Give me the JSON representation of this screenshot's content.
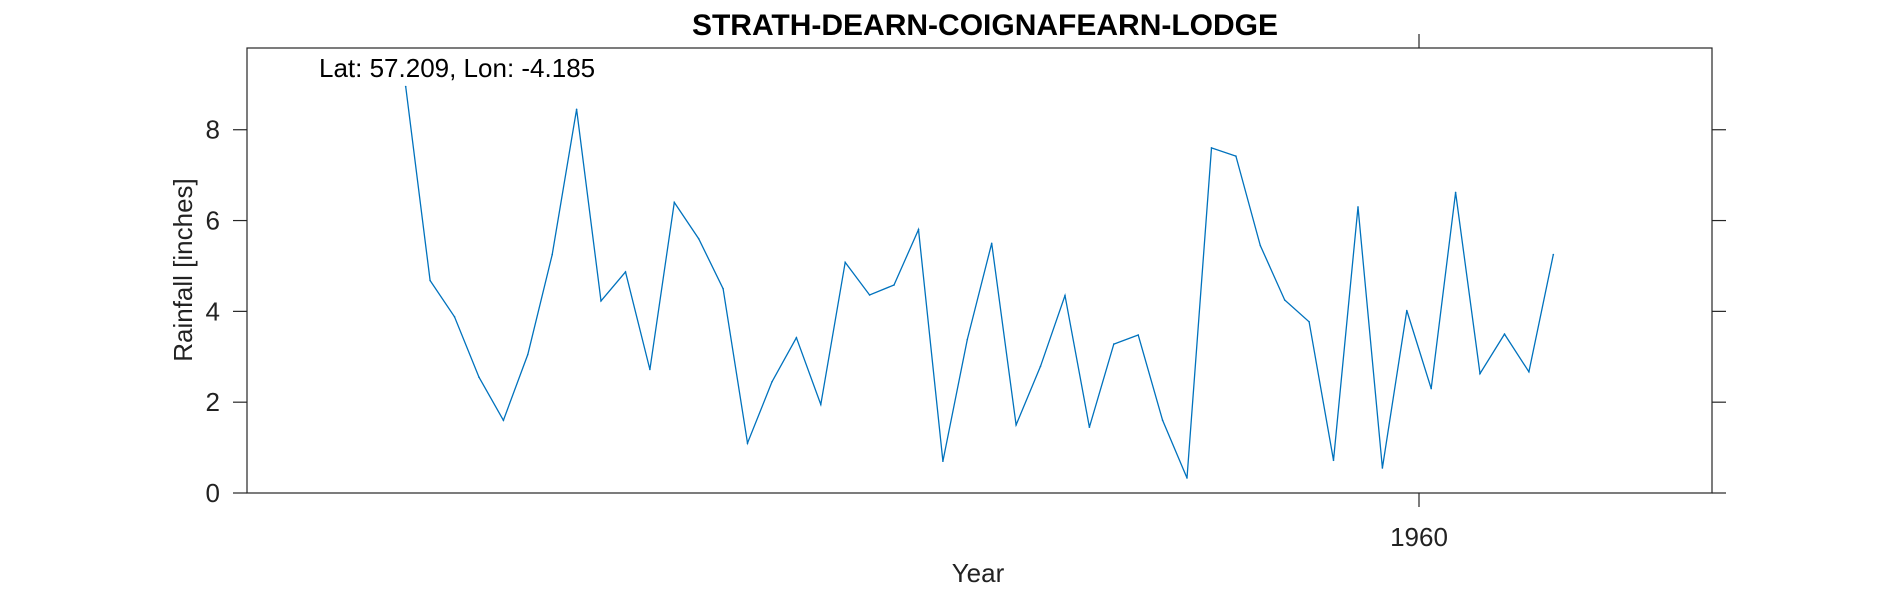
{
  "chart_data": {
    "type": "line",
    "title": "STRATH-DEARN-COIGNAFEARN-LODGE",
    "annotation": "Lat: 57.209, Lon: -4.185",
    "xlabel": "Year",
    "ylabel": "Rainfall [inches]",
    "xlim": [
      1912,
      1972
    ],
    "ylim": [
      0,
      9.8
    ],
    "x_ticks": [
      1960
    ],
    "x_tick_labels": [
      "1960"
    ],
    "y_ticks": [
      0,
      2,
      4,
      6,
      8
    ],
    "y_tick_labels": [
      "0",
      "2",
      "4",
      "6",
      "8"
    ],
    "grid": false,
    "legend": "none",
    "line_color": "#0072BD",
    "series": [
      {
        "x": [
          1918.5,
          1919.5,
          1920.5,
          1921.5,
          1922.5,
          1923.5,
          1924.5,
          1925.5,
          1926.5,
          1927.5,
          1928.5,
          1929.5,
          1930.5,
          1931.5,
          1932.5,
          1933.5,
          1934.5,
          1935.5,
          1936.5,
          1937.5,
          1938.5,
          1939.5,
          1940.5,
          1941.5,
          1942.5,
          1943.5,
          1944.5,
          1945.5,
          1946.5,
          1947.5,
          1948.5,
          1949.5,
          1950.5,
          1951.5,
          1952.5,
          1953.5,
          1954.5,
          1955.5,
          1956.5,
          1957.5,
          1958.5,
          1959.5,
          1960.5,
          1961.5,
          1962.5,
          1963.5,
          1964.5,
          1965.5
        ],
        "values": [
          8.95,
          4.68,
          3.88,
          2.55,
          1.6,
          3.05,
          5.25,
          8.45,
          4.23,
          4.87,
          2.72,
          6.4,
          5.6,
          4.5,
          1.1,
          2.45,
          3.42,
          1.95,
          5.08,
          4.36,
          4.58,
          5.8,
          0.7,
          3.38,
          5.5,
          1.5,
          2.79,
          4.35,
          1.45,
          3.28,
          3.48,
          1.6,
          0.33,
          7.6,
          7.42,
          5.45,
          4.25,
          3.77,
          0.72,
          6.3,
          0.55,
          4.02,
          2.3,
          6.62,
          2.63,
          3.5,
          2.67,
          5.25
        ]
      }
    ]
  }
}
